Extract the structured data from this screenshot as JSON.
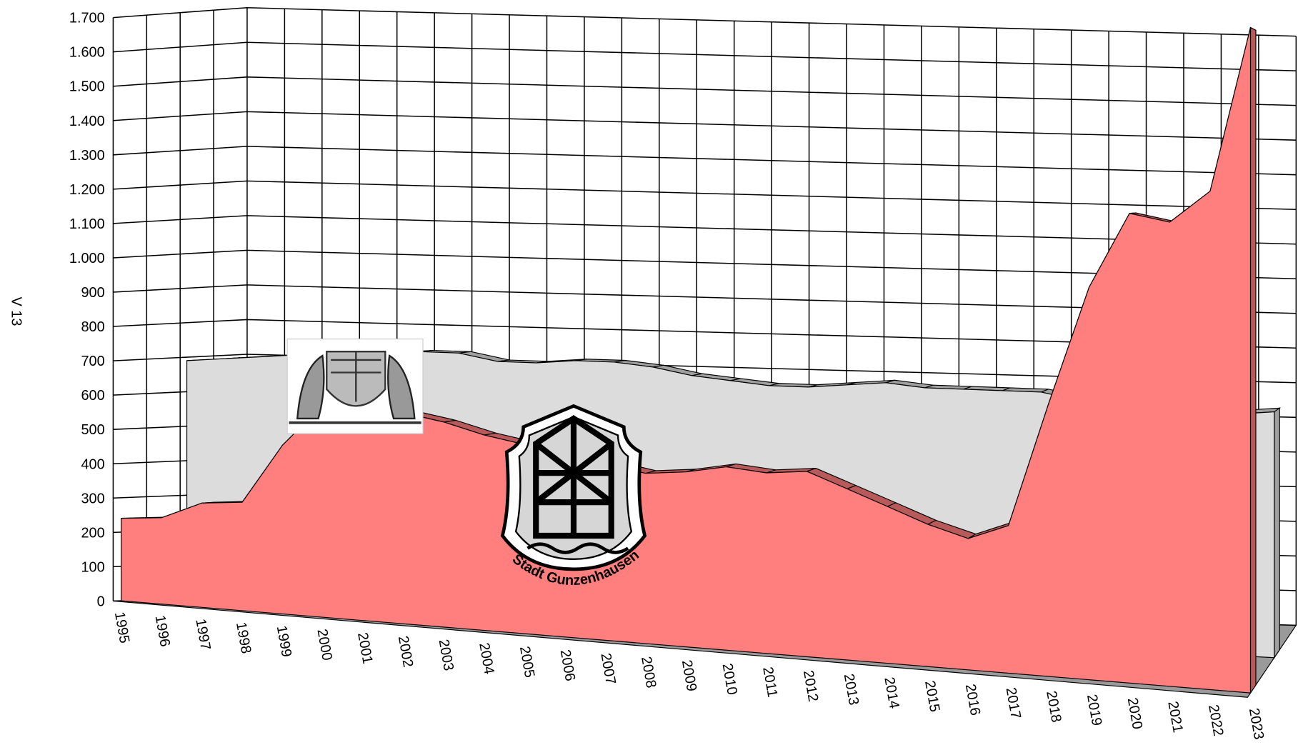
{
  "chart_data": {
    "type": "area3d",
    "y_label": "V 13",
    "logo_text": "Stadt Gunzenhausen",
    "categories": [
      "1995",
      "1996",
      "1997",
      "1998",
      "1999",
      "2000",
      "2001",
      "2002",
      "2003",
      "2004",
      "2005",
      "2006",
      "2007",
      "2008",
      "2009",
      "2010",
      "2011",
      "2012",
      "2013",
      "2014",
      "2015",
      "2016",
      "2017",
      "2018",
      "2019",
      "2020",
      "2021",
      "2022",
      "2023"
    ],
    "series": [
      {
        "color": "#ff7f7f",
        "values": [
          240,
          250,
          300,
          310,
          480,
          600,
          600,
          590,
          570,
          540,
          520,
          500,
          480,
          460,
          470,
          490,
          480,
          490,
          450,
          410,
          370,
          340,
          380,
          700,
          1000,
          1190,
          1170,
          1250,
          1660
        ]
      },
      {
        "color": "#dcdcdc",
        "values": [
          690,
          700,
          710,
          720,
          720,
          730,
          740,
          740,
          720,
          720,
          730,
          730,
          720,
          700,
          690,
          680,
          680,
          690,
          700,
          690,
          690,
          690,
          690,
          670,
          660,
          660,
          650,
          650,
          660
        ]
      }
    ],
    "ylim": [
      0,
      1700
    ],
    "yticks": [
      0,
      100,
      200,
      300,
      400,
      500,
      600,
      700,
      800,
      900,
      {
        "value": 1000,
        "label": "1.000"
      },
      {
        "value": 1100,
        "label": "1.100"
      },
      {
        "value": 1200,
        "label": "1.200"
      },
      {
        "value": 1300,
        "label": "1.300"
      },
      {
        "value": 1400,
        "label": "1.400"
      },
      {
        "value": 1500,
        "label": "1.500"
      },
      {
        "value": 1600,
        "label": "1.600"
      },
      {
        "value": 1700,
        "label": "1.700"
      }
    ],
    "grid": true
  }
}
